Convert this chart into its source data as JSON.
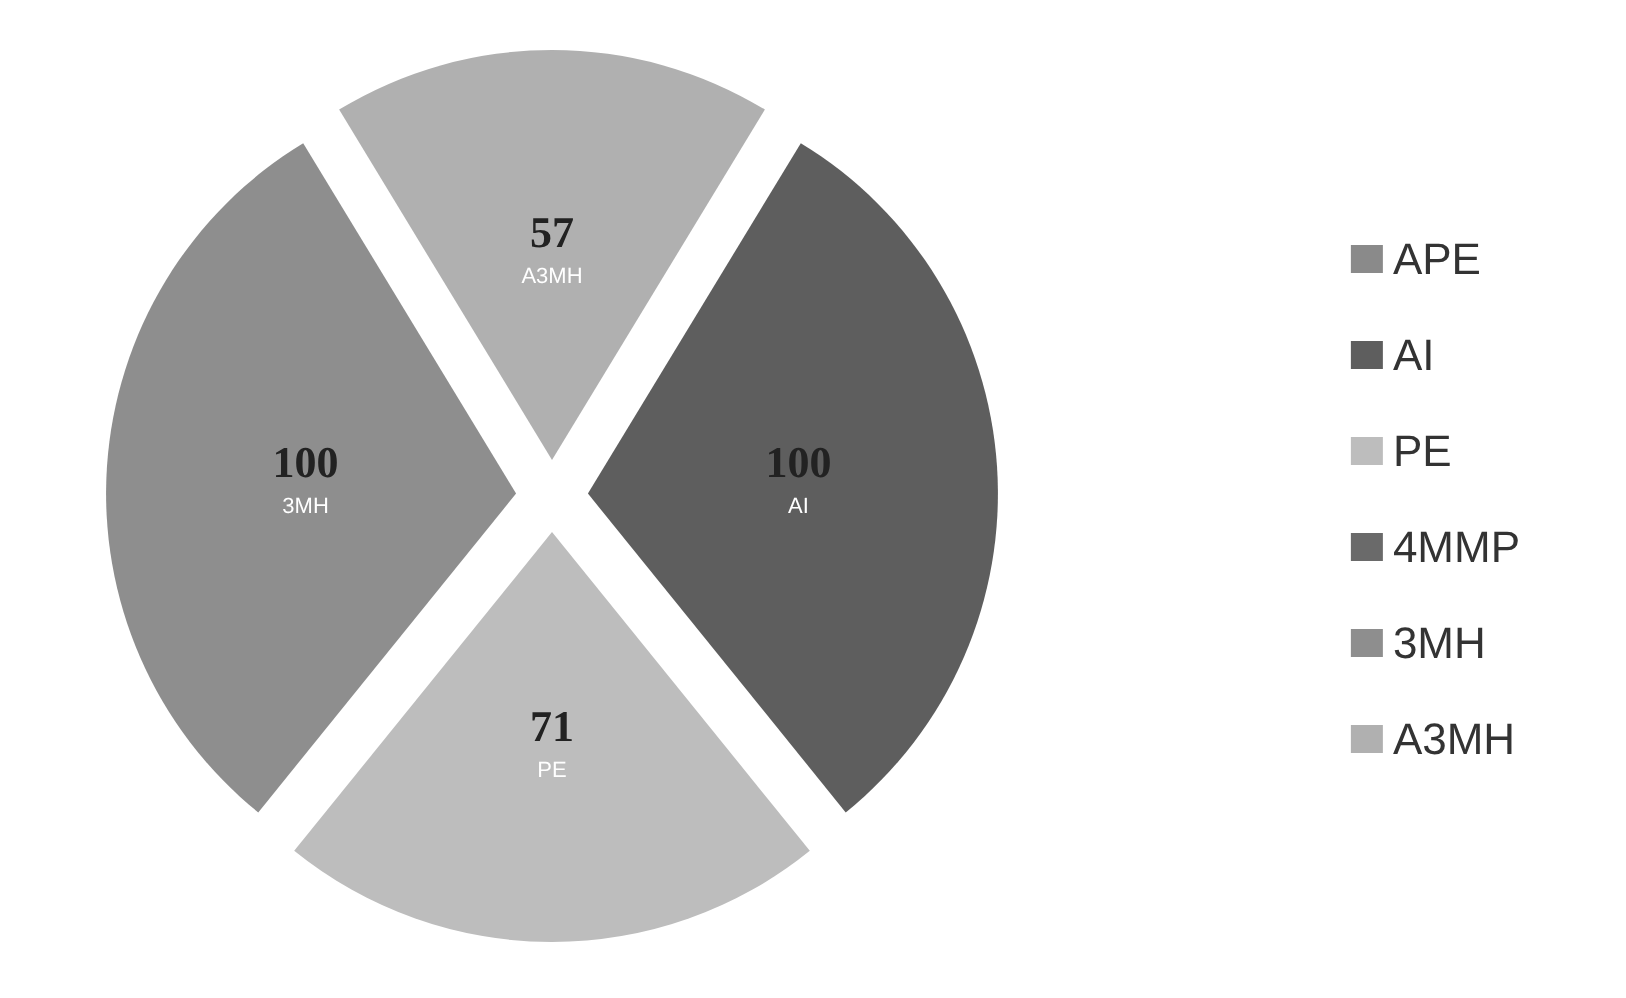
{
  "chart_data": {
    "type": "pie",
    "categories": [
      "APE",
      "AI",
      "PE",
      "4MMP",
      "3MH",
      "A3MH"
    ],
    "values": [
      0,
      100,
      71,
      0,
      100,
      57
    ],
    "colors": [
      "#8a8a8a",
      "#5e5e5e",
      "#bdbdbd",
      "#6a6a6a",
      "#8e8e8e",
      "#b0b0b0"
    ],
    "data_labels": true,
    "legend": "right"
  }
}
